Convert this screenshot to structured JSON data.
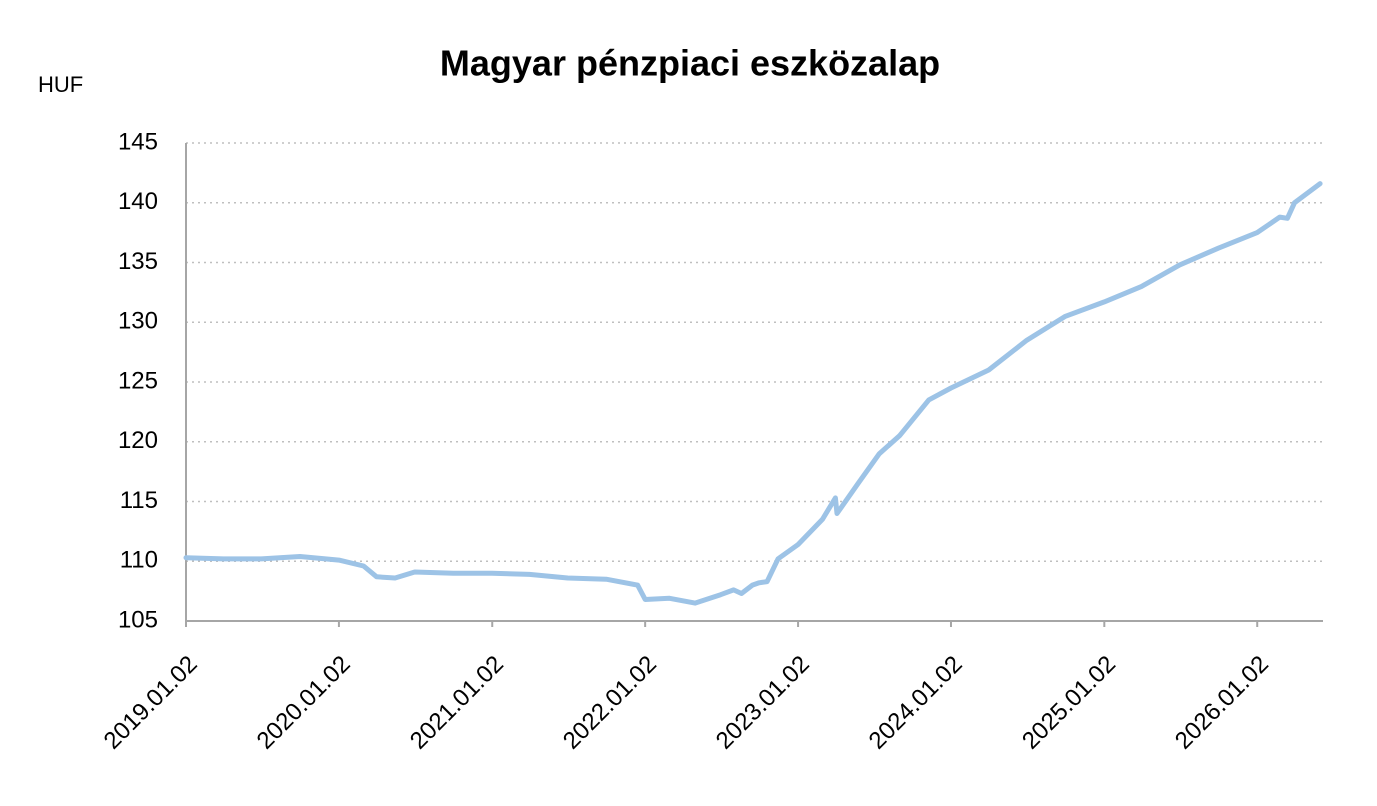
{
  "chart_data": {
    "type": "line",
    "title": "Magyar pénzpiaci eszközalap",
    "y_label": "HUF",
    "x": [
      "2019.01.02",
      "2019.04.01",
      "2019.07.01",
      "2019.10.01",
      "2020.01.02",
      "2020.03.01",
      "2020.04.01",
      "2020.05.15",
      "2020.07.01",
      "2020.10.01",
      "2021.01.02",
      "2021.04.01",
      "2021.07.01",
      "2021.10.01",
      "2021.12.15",
      "2022.01.02",
      "2022.03.01",
      "2022.05.01",
      "2022.07.01",
      "2022.08.01",
      "2022.08.20",
      "2022.09.15",
      "2022.10.01",
      "2022.10.20",
      "2022.11.15",
      "2023.01.02",
      "2023.03.01",
      "2023.04.01",
      "2023.04.05",
      "2023.05.25",
      "2023.07.15",
      "2023.09.01",
      "2023.11.10",
      "2024.01.02",
      "2024.04.01",
      "2024.07.01",
      "2024.10.01",
      "2025.01.02",
      "2025.04.01",
      "2025.07.01",
      "2025.10.01",
      "2026.01.02",
      "2026.02.25",
      "2026.03.15",
      "2026.04.01",
      "2026.06.01"
    ],
    "series": [
      {
        "name": "Magyar pénzpiaci eszközalap",
        "color": "#9dc3e6",
        "values": [
          110.3,
          110.2,
          110.2,
          110.4,
          110.1,
          109.6,
          108.7,
          108.6,
          109.1,
          109.0,
          109.0,
          108.9,
          108.6,
          108.5,
          108.0,
          106.8,
          106.9,
          106.5,
          107.2,
          107.6,
          107.3,
          108.0,
          108.2,
          108.3,
          110.2,
          111.4,
          113.5,
          115.3,
          114.0,
          116.5,
          119.0,
          120.5,
          123.5,
          124.5,
          126.0,
          128.5,
          130.5,
          131.7,
          133.0,
          134.8,
          136.2,
          137.5,
          138.8,
          138.7,
          140.0,
          141.6
        ]
      }
    ],
    "xlim": [
      "2019.01.02",
      "2026.06.08"
    ],
    "xticks": [
      "2019.01.02",
      "2020.01.02",
      "2021.01.02",
      "2022.01.02",
      "2023.01.02",
      "2024.01.02",
      "2025.01.02",
      "2026.01.02"
    ],
    "ylim": [
      105,
      145
    ],
    "yticks": [
      105,
      110,
      115,
      120,
      125,
      130,
      135,
      140,
      145
    ],
    "grid": true
  }
}
